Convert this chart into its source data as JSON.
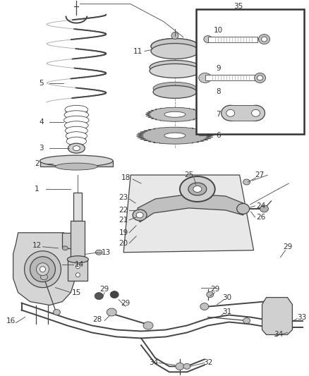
{
  "bg_color": "#ffffff",
  "line_color": "#444444",
  "label_color": "#444444",
  "figsize": [
    4.38,
    5.33
  ],
  "dpi": 100
}
